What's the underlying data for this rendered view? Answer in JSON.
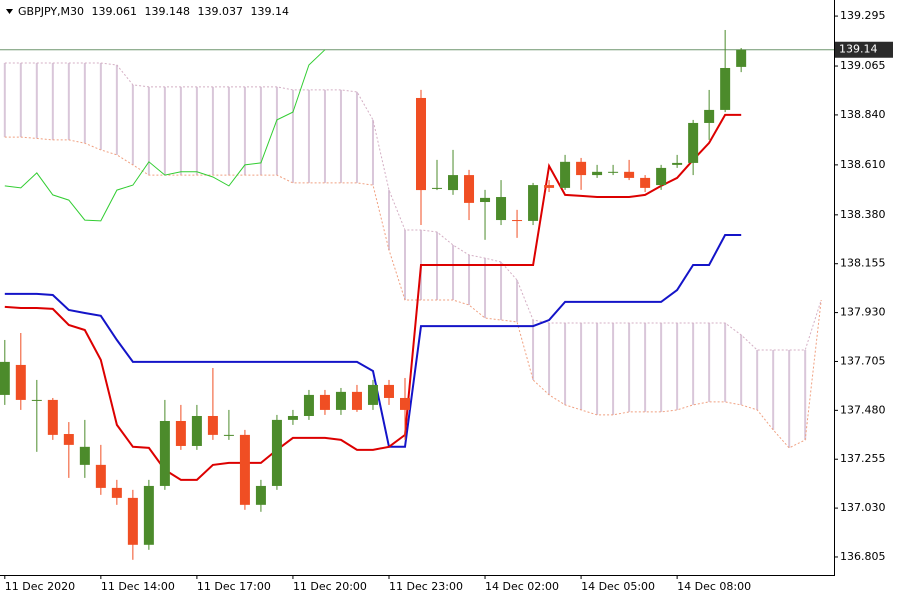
{
  "chart_data": {
    "type": "candlestick",
    "title": "GBPJPY,M30",
    "up_color": "#4c8b2b",
    "down_color": "#f04e23",
    "price_line_color": "#6f956f",
    "xlim": [
      -0.3,
      51.8
    ],
    "ylim": [
      136.722,
      139.369
    ],
    "xticks": [
      {
        "value": 0,
        "label": "11 Dec 2020"
      },
      {
        "value": 6,
        "label": "11 Dec 14:00"
      },
      {
        "value": 12,
        "label": "11 Dec 17:00"
      },
      {
        "value": 18,
        "label": "11 Dec 20:00"
      },
      {
        "value": 24,
        "label": "11 Dec 23:00"
      },
      {
        "value": 30,
        "label": "14 Dec 02:00"
      },
      {
        "value": 36,
        "label": "14 Dec 05:00"
      },
      {
        "value": 42,
        "label": "14 Dec 08:00"
      }
    ],
    "yticks": [
      136.805,
      {
        "value": 137.03,
        "label": "137.030"
      },
      137.255,
      {
        "value": 137.48,
        "label": "137.480"
      },
      137.705,
      {
        "value": 137.93,
        "label": "137.930"
      },
      138.155,
      {
        "value": 138.38,
        "label": "138.380"
      },
      {
        "value": 138.61,
        "label": "138.610"
      },
      {
        "value": 138.84,
        "label": "138.840"
      },
      139.065,
      139.295
    ],
    "open": [
      137.551,
      137.689,
      137.528,
      137.528,
      137.371,
      137.229,
      137.229,
      137.123,
      137.077,
      136.861,
      137.132,
      137.431,
      137.316,
      137.454,
      137.367,
      137.367,
      137.045,
      137.132,
      137.436,
      137.454,
      137.551,
      137.482,
      137.565,
      137.505,
      137.597,
      137.537,
      138.918,
      138.504,
      138.494,
      138.563,
      138.439,
      138.356,
      138.356,
      138.352,
      138.517,
      138.504,
      138.624,
      138.563,
      138.578,
      138.578,
      138.55,
      138.517,
      138.61,
      138.619,
      138.803,
      138.863,
      139.061
    ],
    "high": [
      137.804,
      137.836,
      137.62,
      137.537,
      137.426,
      137.436,
      137.321,
      137.16,
      137.114,
      137.16,
      137.528,
      137.505,
      137.505,
      137.675,
      137.482,
      137.39,
      137.16,
      137.459,
      137.482,
      137.574,
      137.574,
      137.583,
      137.597,
      137.62,
      137.62,
      137.629,
      138.955,
      138.633,
      138.679,
      138.587,
      138.495,
      138.54,
      138.403,
      138.527,
      138.54,
      138.656,
      138.642,
      138.61,
      138.61,
      138.633,
      138.563,
      138.61,
      138.656,
      138.817,
      138.955,
      139.231,
      139.148
    ],
    "low": [
      137.505,
      137.482,
      137.289,
      137.344,
      137.169,
      137.169,
      137.091,
      137.045,
      136.792,
      136.838,
      137.114,
      137.298,
      137.298,
      137.344,
      137.344,
      137.022,
      137.013,
      137.114,
      137.413,
      137.436,
      137.459,
      137.459,
      137.473,
      137.482,
      137.505,
      137.344,
      138.333,
      138.494,
      138.472,
      138.356,
      138.265,
      138.333,
      138.274,
      138.333,
      138.485,
      138.495,
      138.495,
      138.55,
      138.563,
      138.54,
      138.485,
      138.495,
      138.596,
      138.563,
      138.725,
      138.853,
      139.037
    ],
    "close": [
      137.703,
      137.528,
      137.528,
      137.367,
      137.321,
      137.312,
      137.123,
      137.077,
      136.861,
      137.132,
      137.431,
      137.316,
      137.454,
      137.367,
      137.367,
      137.045,
      137.132,
      137.436,
      137.454,
      137.551,
      137.482,
      137.565,
      137.482,
      137.597,
      137.537,
      137.482,
      138.494,
      138.504,
      138.563,
      138.435,
      138.458,
      138.462,
      138.352,
      138.517,
      138.504,
      138.624,
      138.563,
      138.578,
      138.578,
      138.55,
      138.504,
      138.596,
      138.619,
      138.803,
      138.863,
      139.056,
      139.14
    ],
    "cloud": {
      "fill_color": "#d9c6d9",
      "span_a": {
        "color": "#f0a080",
        "values": [
          138.738,
          138.738,
          138.732,
          138.725,
          138.725,
          138.71,
          138.679,
          138.656,
          138.61,
          138.563,
          138.563,
          138.563,
          138.563,
          138.563,
          138.563,
          138.563,
          138.563,
          138.563,
          138.527,
          138.527,
          138.527,
          138.527,
          138.527,
          138.517,
          138.218,
          137.988,
          137.988,
          137.988,
          137.988,
          137.965,
          137.905,
          137.896,
          137.887,
          137.62,
          137.551,
          137.505,
          137.482,
          137.459,
          137.459,
          137.473,
          137.473,
          137.473,
          137.482,
          137.505,
          137.519,
          137.519,
          137.505,
          137.482,
          137.39,
          137.307,
          137.344,
          137.988
        ]
      },
      "span_b": {
        "color": "#d4afc4",
        "values": [
          139.079,
          139.079,
          139.079,
          139.079,
          139.079,
          139.079,
          139.079,
          139.07,
          138.978,
          138.969,
          138.969,
          138.969,
          138.969,
          138.969,
          138.969,
          138.969,
          138.969,
          138.969,
          138.955,
          138.955,
          138.955,
          138.955,
          138.946,
          138.817,
          138.494,
          138.31,
          138.31,
          138.301,
          138.241,
          138.195,
          138.181,
          138.163,
          138.08,
          137.896,
          137.882,
          137.882,
          137.882,
          137.882,
          137.882,
          137.882,
          137.882,
          137.882,
          137.882,
          137.882,
          137.882,
          137.882,
          137.827,
          137.758,
          137.758,
          137.758,
          137.758,
          137.988
        ]
      }
    },
    "lines": [
      {
        "color": "#32cd32",
        "width": 1,
        "values": [
          138.513,
          138.504,
          138.573,
          138.472,
          138.448,
          138.356,
          138.352,
          138.494,
          138.517,
          138.624,
          138.563,
          138.578,
          138.578,
          138.554,
          138.513,
          138.61,
          138.619,
          138.817,
          138.853,
          139.07,
          139.14,
          null,
          null,
          null,
          null,
          null,
          null,
          null,
          null,
          null,
          null,
          null,
          null,
          null,
          null,
          null,
          null,
          null,
          null,
          null,
          null,
          null,
          null,
          null,
          null,
          null,
          null
        ]
      },
      {
        "color": "#1414c8",
        "width": 2,
        "values": [
          138.016,
          138.016,
          138.016,
          138.011,
          137.942,
          137.928,
          137.915,
          137.804,
          137.703,
          137.703,
          137.703,
          137.703,
          137.703,
          137.703,
          137.703,
          137.703,
          137.703,
          137.703,
          137.703,
          137.703,
          137.703,
          137.703,
          137.703,
          137.661,
          137.312,
          137.312,
          137.868,
          137.868,
          137.868,
          137.868,
          137.868,
          137.868,
          137.868,
          137.868,
          137.896,
          137.979,
          137.979,
          137.979,
          137.979,
          137.979,
          137.979,
          137.979,
          138.034,
          138.149,
          138.149,
          138.287,
          138.287
        ]
      },
      {
        "color": "#dc0000",
        "width": 2,
        "values": [
          137.956,
          137.951,
          137.951,
          137.947,
          137.873,
          137.85,
          137.712,
          137.413,
          137.312,
          137.307,
          137.206,
          137.16,
          137.16,
          137.229,
          137.238,
          137.238,
          137.238,
          137.298,
          137.353,
          137.353,
          137.353,
          137.344,
          137.298,
          137.298,
          137.312,
          137.367,
          138.149,
          138.149,
          138.149,
          138.149,
          138.149,
          138.149,
          138.149,
          138.149,
          138.605,
          138.472,
          138.467,
          138.462,
          138.462,
          138.462,
          138.472,
          138.513,
          138.55,
          138.633,
          138.711,
          138.84,
          138.84
        ]
      }
    ]
  }
}
